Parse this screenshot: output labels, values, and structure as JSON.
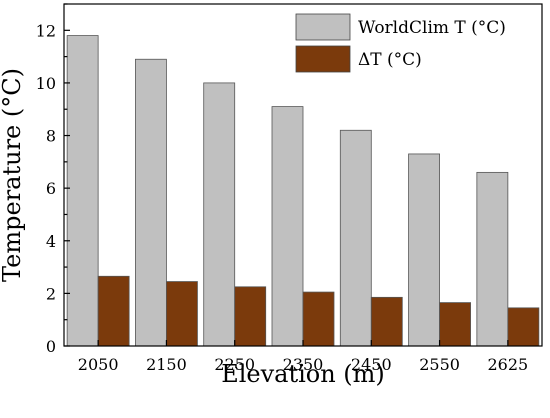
{
  "chart_data": {
    "type": "bar",
    "categories": [
      "2050",
      "2150",
      "2250",
      "2350",
      "2450",
      "2550",
      "2625"
    ],
    "series": [
      {
        "name": "WorldClim T (°C)",
        "values": [
          11.8,
          10.9,
          10.0,
          9.1,
          8.2,
          7.3,
          6.6
        ],
        "color": "#c0c0c0"
      },
      {
        "name": "ΔT (°C)",
        "values": [
          2.65,
          2.45,
          2.25,
          2.05,
          1.85,
          1.65,
          1.45
        ],
        "color": "#7b3a0c"
      }
    ],
    "title": "",
    "xlabel": "Elevation (m)",
    "ylabel": "Temperature (°C)",
    "ylim": [
      0,
      13
    ],
    "yticks": [
      "0",
      "2",
      "4",
      "6",
      "8",
      "10",
      "12"
    ],
    "legend_position": "top-right",
    "grid": false
  }
}
